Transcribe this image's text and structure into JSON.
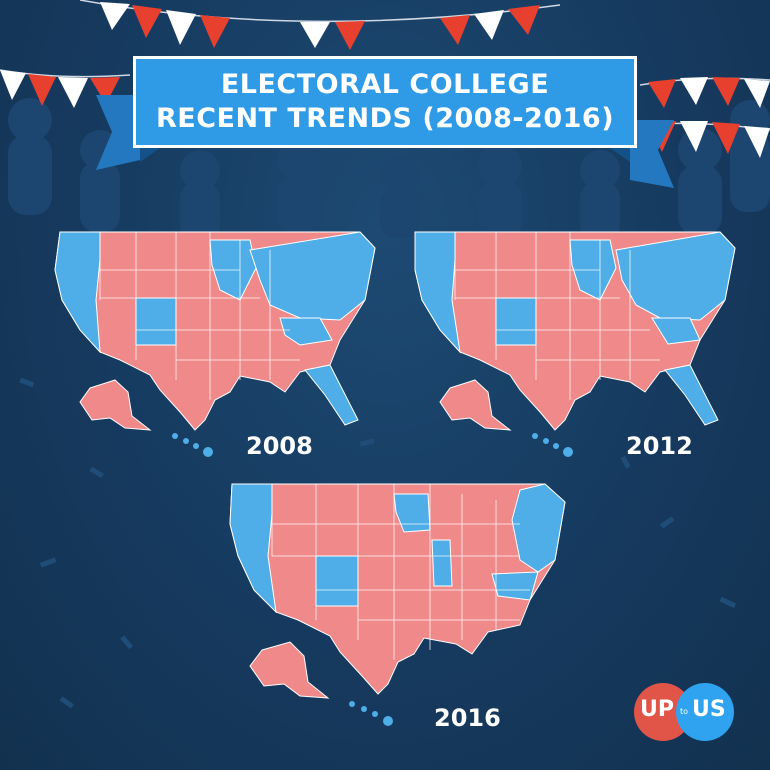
{
  "title": {
    "line1": "ELECTORAL COLLEGE",
    "line2": "RECENT TRENDS (2008-2016)"
  },
  "colors": {
    "background": "#163a5f",
    "republican": "#f08a8a",
    "democrat": "#4faee8",
    "banner": "#2f9ae6",
    "flag_red": "#e8402f",
    "flag_white": "#ffffff"
  },
  "maps": [
    {
      "year": "2008"
    },
    {
      "year": "2012"
    },
    {
      "year": "2016"
    }
  ],
  "logo": {
    "left": "UP",
    "middle": "to",
    "right": "US"
  }
}
